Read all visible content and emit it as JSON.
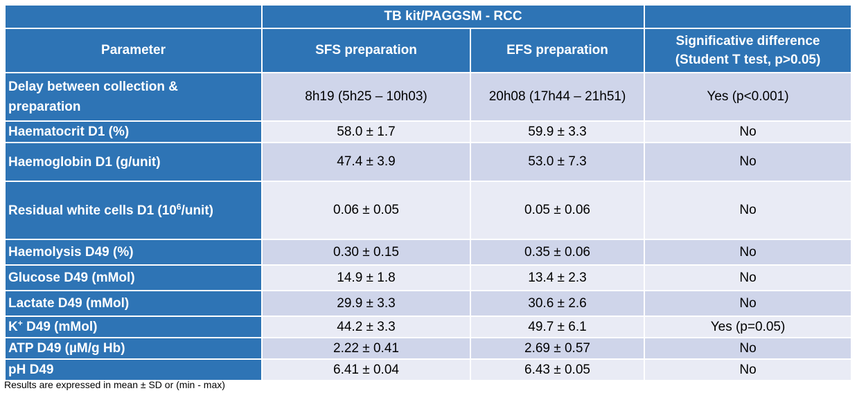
{
  "table": {
    "group_header": "TB kit/PAGGSM - RCC",
    "col_parameter": "Parameter",
    "col_sfs": "SFS preparation",
    "col_efs": "EFS preparation",
    "col_sig_line1": "Significative difference",
    "col_sig_line2": "(Student T test, p>0.05)",
    "rows": [
      {
        "param_line1": "Delay between collection &",
        "param_line2": "preparation",
        "sfs": "8h19 (5h25 – 10h03)",
        "efs": "20h08 (17h44 – 21h51)",
        "sig": "Yes (p<0.001)"
      },
      {
        "param": "Haematocrit D1 (%)",
        "sfs": "58.0 ± 1.7",
        "efs": "59.9 ± 3.3",
        "sig": "No"
      },
      {
        "param": "Haemoglobin D1 (g/unit)",
        "sfs": "47.4 ± 3.9",
        "efs": "53.0 ± 7.3",
        "sig": "No"
      },
      {
        "param_pre": "Residual white cells D1 (10",
        "param_sup": "6",
        "param_post": "/unit)",
        "sfs": "0.06 ± 0.05",
        "efs": "0.05 ± 0.06",
        "sig": "No"
      },
      {
        "param": "Haemolysis D49 (%)",
        "sfs": "0.30 ± 0.15",
        "efs": "0.35 ± 0.06",
        "sig": "No"
      },
      {
        "param": "Glucose D49 (mMol)",
        "sfs": "14.9 ± 1.8",
        "efs": "13.4 ± 2.3",
        "sig": "No"
      },
      {
        "param": "Lactate D49 (mMol)",
        "sfs": "29.9 ± 3.3",
        "efs": "30.6 ± 2.6",
        "sig": "No"
      },
      {
        "param_pre": "K",
        "param_sup": "+",
        "param_post": " D49 (mMol)",
        "sfs": "44.2 ± 3.3",
        "efs": "49.7 ± 6.1",
        "sig": "Yes (p=0.05)"
      },
      {
        "param": "ATP D49 (µM/g Hb)",
        "sfs": "2.22 ± 0.41",
        "efs": "2.69 ± 0.57",
        "sig": "No"
      },
      {
        "param": "pH D49",
        "sfs": "6.41 ± 0.04",
        "efs": "6.43 ± 0.05",
        "sig": "No"
      }
    ]
  },
  "footnote": "Results are expressed in mean ± SD or (min - max)",
  "colors": {
    "header_blue": "#2e74b5",
    "row_dark": "#cfd5ea",
    "row_light": "#e9ebf5"
  }
}
